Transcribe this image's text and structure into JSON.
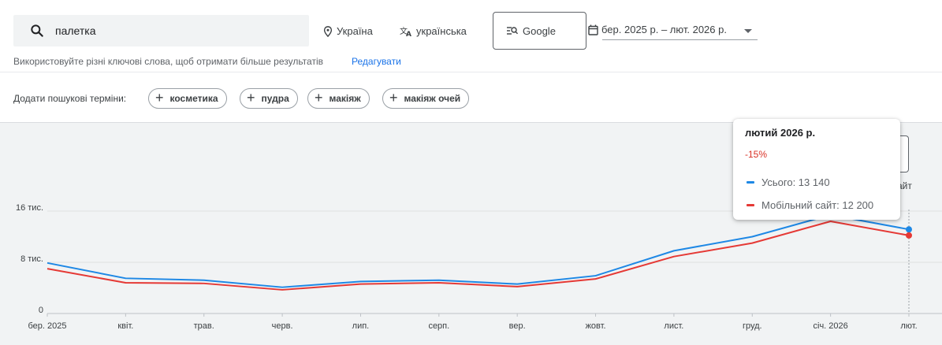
{
  "search": {
    "query": "палетка"
  },
  "filters": {
    "region": "Україна",
    "language": "українська",
    "source": "Google",
    "date_range": "бер. 2025 р. – лют. 2026 р."
  },
  "hint": {
    "text": "Використовуйте різні ключові слова, щоб отримати більше результатів",
    "link": "Редагувати"
  },
  "add_terms": {
    "label": "Додати пошукові терміни:",
    "chips": [
      "косметика",
      "пудра",
      "макіяж",
      "макіяж очей"
    ]
  },
  "tooltip": {
    "title": "лютий 2026 р.",
    "change": "-15%",
    "total_label": "Усього: 13 140",
    "mobile_label": "Мобільний сайт: 12 200"
  },
  "right_partial_text": "айт",
  "colors": {
    "total": "#1e88e5",
    "mobile": "#e53935",
    "accent": "#1a73e8"
  },
  "chart_data": {
    "type": "line",
    "categories": [
      "бер. 2025",
      "квіт.",
      "трав.",
      "черв.",
      "лип.",
      "серп.",
      "вер.",
      "жовт.",
      "лист.",
      "груд.",
      "січ. 2026",
      "лют."
    ],
    "series": [
      {
        "name": "Усього",
        "values": [
          7900,
          5500,
          5200,
          4100,
          5000,
          5200,
          4600,
          5900,
          9800,
          12000,
          15400,
          13140
        ]
      },
      {
        "name": "Мобільний сайт",
        "values": [
          7000,
          4800,
          4700,
          3700,
          4600,
          4800,
          4200,
          5400,
          8900,
          11000,
          14400,
          12200
        ]
      }
    ],
    "y_ticks": [
      {
        "value": 0,
        "label": "0"
      },
      {
        "value": 8000,
        "label": "8 тис."
      },
      {
        "value": 16000,
        "label": "16 тис."
      }
    ],
    "ylim": [
      0,
      16000
    ],
    "grid": true
  }
}
